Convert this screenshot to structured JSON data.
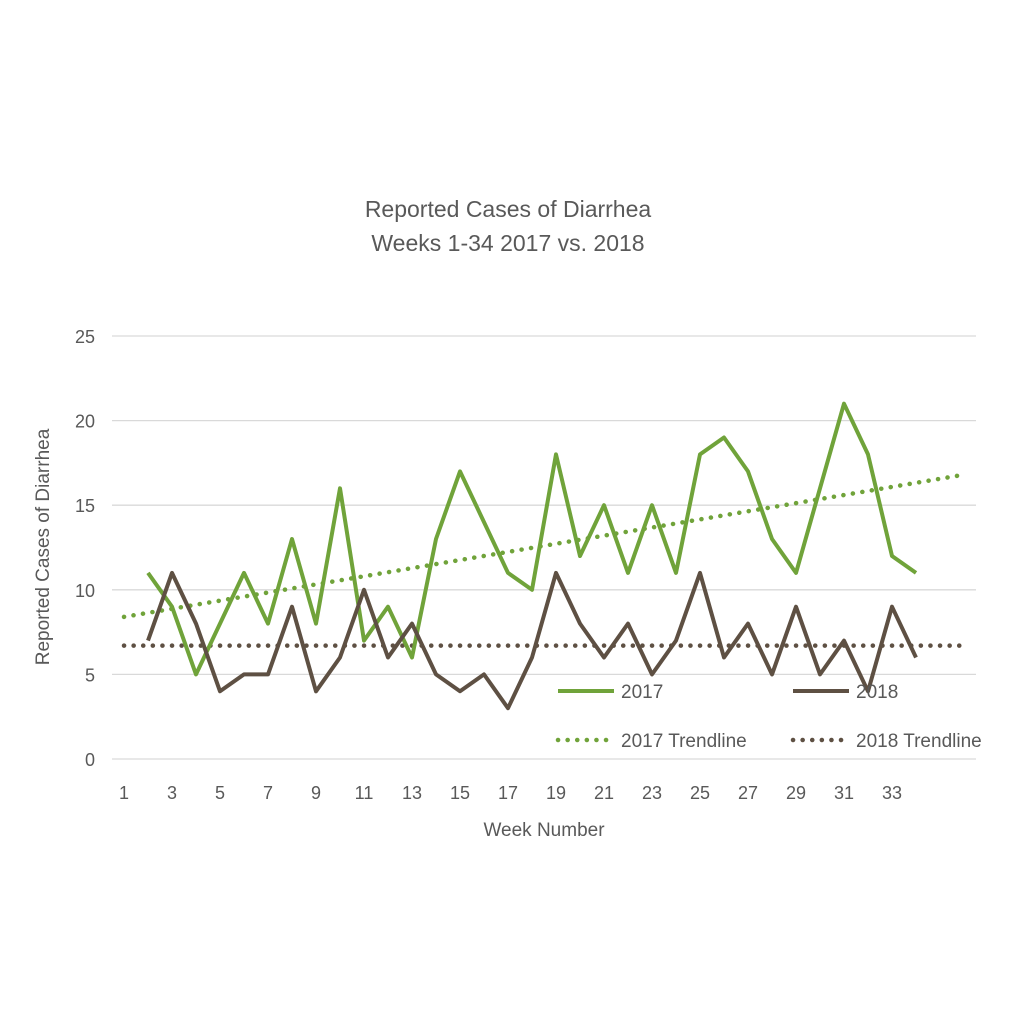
{
  "chart_data": {
    "type": "line",
    "title": "Reported Cases of Diarrhea",
    "subtitle": "Weeks 1-34 2017 vs. 2018",
    "xlabel": "Week Number",
    "ylabel": "Reported Cases of Diarrhea",
    "ylim": [
      0,
      25
    ],
    "yticks": [
      0,
      5,
      10,
      15,
      20,
      25
    ],
    "xticks": [
      1,
      3,
      5,
      7,
      9,
      11,
      13,
      15,
      17,
      19,
      21,
      23,
      25,
      27,
      29,
      31,
      33
    ],
    "grid": true,
    "legend_position": "bottom-right",
    "x": [
      2,
      3,
      4,
      5,
      6,
      7,
      8,
      9,
      10,
      11,
      12,
      13,
      14,
      15,
      16,
      17,
      18,
      19,
      20,
      21,
      22,
      23,
      24,
      25,
      26,
      27,
      28,
      29,
      30,
      31,
      32,
      33,
      34
    ],
    "series": [
      {
        "name": "2017",
        "color": "#70a33a",
        "style": "solid",
        "values": [
          11,
          9,
          5,
          8,
          11,
          8,
          13,
          8,
          16,
          7,
          9,
          6,
          13,
          17,
          14,
          11,
          10,
          18,
          12,
          15,
          11,
          15,
          11,
          18,
          19,
          17,
          13,
          11,
          16,
          21,
          18,
          12,
          11
        ]
      },
      {
        "name": "2018",
        "color": "#5e5043",
        "style": "solid",
        "values": [
          7,
          11,
          8,
          4,
          5,
          5,
          9,
          4,
          6,
          10,
          6,
          8,
          5,
          4,
          5,
          3,
          6,
          11,
          8,
          6,
          8,
          5,
          7,
          11,
          6,
          8,
          5,
          9,
          5,
          7,
          4,
          9,
          6
        ]
      },
      {
        "name": "2017 Trendline",
        "color": "#70a33a",
        "style": "dotted",
        "x": [
          1,
          36
        ],
        "values": [
          8.4,
          16.8
        ]
      },
      {
        "name": "2018 Trendline",
        "color": "#5e5043",
        "style": "dotted",
        "x": [
          1,
          36
        ],
        "values": [
          6.7,
          6.7
        ]
      }
    ]
  }
}
